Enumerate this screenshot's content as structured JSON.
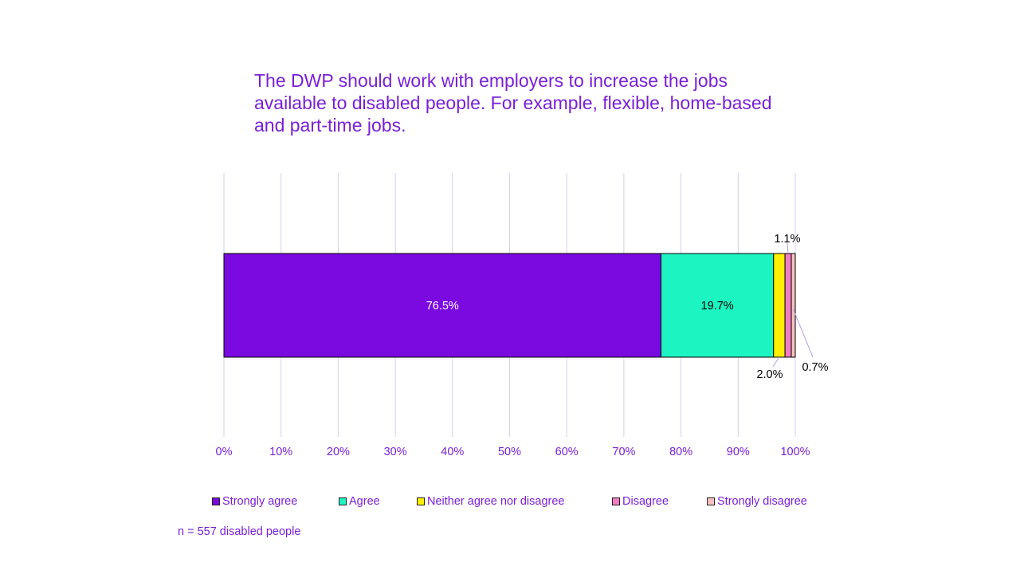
{
  "chart_data": {
    "type": "bar",
    "orientation": "horizontal",
    "stacked": true,
    "title": "The DWP should work with employers to increase the jobs available to disabled people. For example, flexible, home-based and part-time jobs.",
    "xlim": [
      0,
      100
    ],
    "x_ticks": [
      "0%",
      "10%",
      "20%",
      "30%",
      "40%",
      "50%",
      "60%",
      "70%",
      "80%",
      "90%",
      "100%"
    ],
    "grid": "vertical",
    "legend_position": "bottom",
    "series": [
      {
        "name": "Strongly agree",
        "value": 76.5,
        "label": "76.5%",
        "color": "#7a0ae0",
        "label_color": "#ffffff"
      },
      {
        "name": "Agree",
        "value": 19.7,
        "label": "19.7%",
        "color": "#1cf5c2",
        "label_color": "#000000"
      },
      {
        "name": "Neither agree nor disagree",
        "value": 2.0,
        "label": "2.0%",
        "color": "#fff000",
        "label_color": "#000000"
      },
      {
        "name": "Disagree",
        "value": 1.1,
        "label": "1.1%",
        "color": "#f27cc4",
        "label_color": "#000000"
      },
      {
        "name": "Strongly disagree",
        "value": 0.7,
        "label": "0.7%",
        "color": "#f5c2c2",
        "label_color": "#000000"
      }
    ],
    "note": "n = 557 disabled people"
  }
}
